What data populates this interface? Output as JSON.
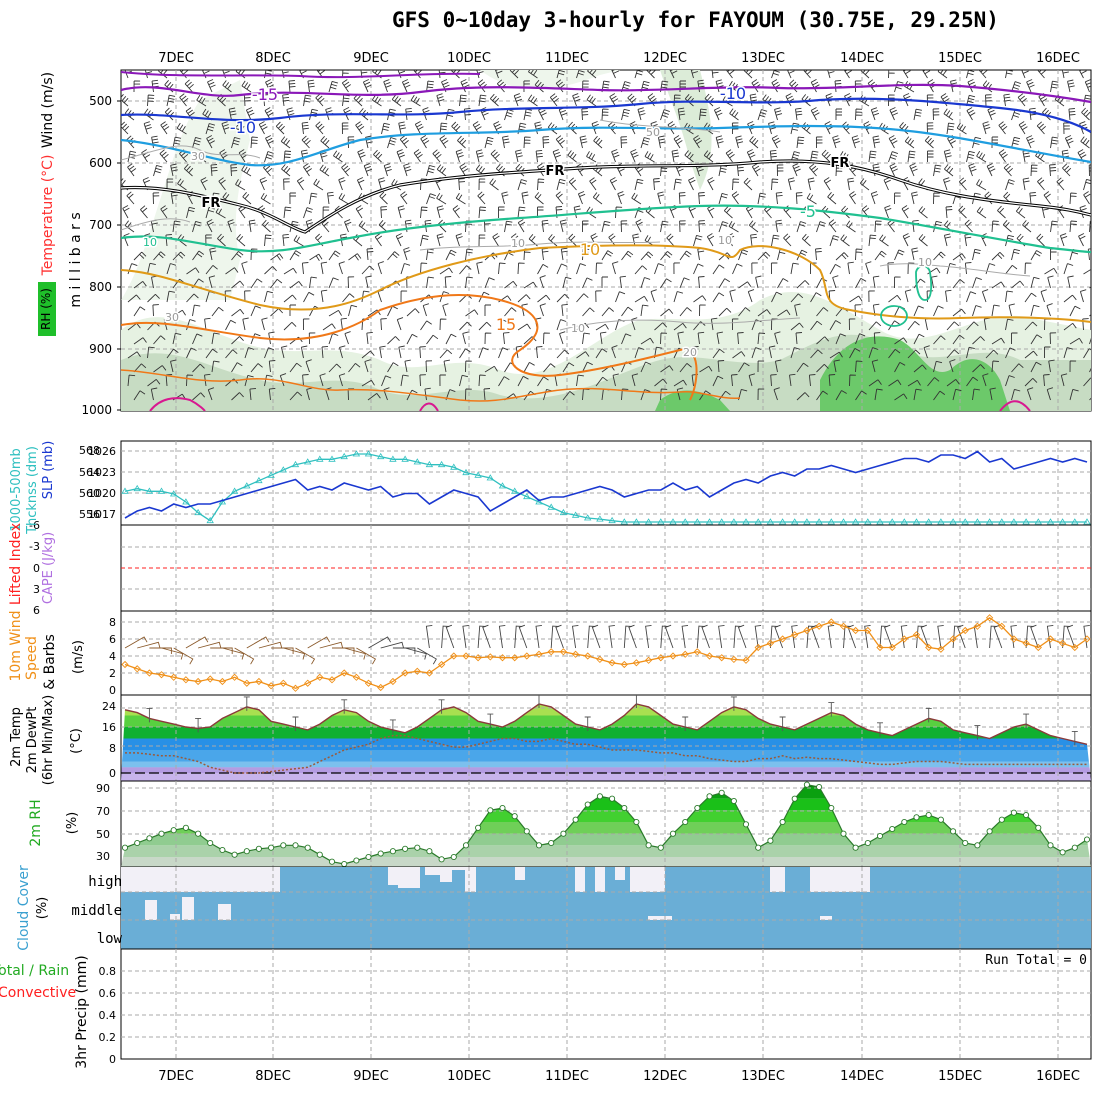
{
  "title": "GFS 0~10day 3-hourly for FAYOUM (30.75E, 29.25N)",
  "dates": [
    "7DEC",
    "8DEC",
    "9DEC",
    "10DEC",
    "11DEC",
    "12DEC",
    "13DEC",
    "14DEC",
    "15DEC",
    "16DEC"
  ],
  "colors": {
    "rh_green": "#1fbf2a",
    "temp": "#ff3030",
    "wind": "#000000",
    "thickness": "#30c0c0",
    "slp": "#1a38d0",
    "lifted": "#ff2020",
    "cape": "#b070e0",
    "wind_orange": "#f09018",
    "cloud_blue": "#6aaed6",
    "rh_label": "#22aa22",
    "precip_total": "#22aa22",
    "precip_conv": "#ff2020"
  },
  "panels": {
    "upper": {
      "label_rh": "RH (%)",
      "label_temp": "Temperature (°C)",
      "label_wind": "Wind (m/s)",
      "label_mb": "m i l l i b a r s",
      "yticks": [
        "500",
        "600",
        "700",
        "800",
        "900",
        "1000"
      ],
      "contour_labels": [
        "-15",
        "-10",
        "-10",
        "-5",
        "FR",
        "FR",
        "FR",
        "10",
        "15",
        "10",
        "10",
        "10",
        "30",
        "10",
        "50",
        "20",
        "10",
        "30"
      ]
    },
    "thickness": {
      "label_a": "1000-500mb",
      "label_b": "Thcknss (dm)",
      "label_c": "SLP (mb)",
      "left_ticks": [
        "568",
        "564",
        "560",
        "556"
      ],
      "right_ticks": [
        "1026",
        "1023",
        "1020",
        "1017"
      ]
    },
    "stability": {
      "label_a": "Lifted Index",
      "label_b": "CAPE (J/kg)",
      "yticks": [
        "-6",
        "-3",
        "0",
        "3",
        "6"
      ]
    },
    "wind10m": {
      "label_a": "10m Wind",
      "label_b": "Speed",
      "label_c": "& Barbs",
      "label_d": "(m/s)",
      "yticks": [
        "8",
        "6",
        "4",
        "2",
        "0"
      ]
    },
    "temp2m": {
      "label_a": "2m Temp",
      "label_b": "2m DewPt",
      "label_c": "(6hr Min/Max)",
      "label_d": "(°C)",
      "yticks": [
        "24",
        "16",
        "8",
        "0"
      ]
    },
    "rh2m": {
      "label_a": "2m RH",
      "label_b": "(%)",
      "yticks": [
        "90",
        "70",
        "50",
        "30"
      ]
    },
    "cloud": {
      "label_a": "Cloud Cover",
      "label_b": "(%)",
      "levels": [
        "high",
        "middle",
        "low"
      ]
    },
    "precip": {
      "label_a": "Total / Rain",
      "label_b": "Convective",
      "label_c": "3hr Precip (mm)",
      "run_total": "Run Total = 0",
      "yticks": [
        "0.8",
        "0.6",
        "0.4",
        "0.2",
        "0"
      ]
    }
  },
  "chart_data": [
    {
      "type": "line",
      "title": "1000-500mb Thickness (dm) and SLP (mb)",
      "series": [
        {
          "name": "1000-500mb Thcknss (dm)",
          "values": [
            561,
            561.5,
            561,
            561,
            560.5,
            559,
            557,
            555.5,
            559,
            561,
            562,
            563,
            564,
            565,
            566,
            566.5,
            567,
            567,
            567.5,
            568,
            568,
            567.5,
            567,
            567,
            566.5,
            566,
            566,
            565.5,
            564.5,
            564,
            563.5,
            562,
            561,
            560,
            559,
            558,
            557,
            556.5,
            556,
            555.8,
            555.5,
            555.2,
            555,
            554.7,
            554.5,
            554.3,
            554.2,
            554.1,
            553.9,
            553.8,
            553.6,
            553.4,
            553.2,
            553.1,
            553,
            552.9,
            552.8,
            552.6,
            552.5,
            552.4,
            552.2,
            552.1,
            552,
            551.8,
            551.7,
            551.6,
            551.5,
            551.4,
            551.3,
            551.2,
            551,
            550.9,
            550.8,
            550.7,
            550.6,
            550.4,
            550.3,
            550.2,
            550.1,
            550
          ]
        },
        {
          "name": "SLP (mb)",
          "values": [
            1017,
            1018,
            1018.5,
            1018,
            1019,
            1018.5,
            1019,
            1019,
            1019.5,
            1020,
            1020.5,
            1021,
            1021.5,
            1022,
            1022.5,
            1021,
            1021.5,
            1021,
            1022,
            1021.5,
            1021,
            1021.5,
            1020,
            1020.5,
            1020.5,
            1019,
            1020,
            1021,
            1020.5,
            1020,
            1018,
            1019,
            1020,
            1021,
            1019.5,
            1020,
            1020,
            1020.5,
            1021,
            1021.5,
            1021,
            1020,
            1020.5,
            1021,
            1021,
            1022,
            1021,
            1021.5,
            1020,
            1021,
            1022,
            1022.5,
            1022,
            1023,
            1023.5,
            1023,
            1024,
            1024,
            1024.5,
            1024,
            1023.5,
            1024,
            1024.5,
            1025,
            1025.5,
            1025.5,
            1025,
            1026,
            1026,
            1025.5,
            1026.5,
            1025,
            1025.5,
            1024,
            1024.5,
            1025,
            1025.5,
            1025,
            1025.5,
            1025
          ]
        }
      ]
    },
    {
      "type": "line",
      "title": "10m Wind Speed (m/s)",
      "series": [
        {
          "name": "10m Wind Speed",
          "values": [
            3,
            2.5,
            2,
            1.8,
            1.5,
            1.2,
            1,
            1.3,
            1,
            1.5,
            0.8,
            1,
            0.5,
            0.8,
            0.2,
            0.8,
            1.5,
            1.2,
            2,
            1.5,
            0.8,
            0.3,
            1,
            2,
            2.2,
            2,
            3,
            4,
            4,
            3.8,
            3.9,
            3.8,
            3.8,
            4,
            4.2,
            4.5,
            4.5,
            4.2,
            4,
            3.6,
            3.2,
            3,
            3.2,
            3.5,
            3.8,
            4,
            4.2,
            4.5,
            4,
            3.8,
            3.6,
            3.5,
            5,
            5.5,
            6,
            6.5,
            7,
            7.5,
            8,
            7.5,
            7,
            7,
            5,
            5,
            6,
            6.5,
            5,
            4.8,
            6,
            7,
            7.5,
            8.5,
            7.5,
            6,
            5.5,
            5,
            6,
            5.5,
            5,
            6
          ]
        }
      ]
    },
    {
      "type": "area",
      "title": "2m Temp / 2m DewPt (°C)",
      "series": [
        {
          "name": "2m Temp",
          "values": [
            22,
            21,
            19,
            18,
            17,
            16,
            15.5,
            16,
            19,
            21,
            23,
            22,
            18,
            17,
            16,
            15,
            17,
            20,
            22,
            21,
            18,
            16,
            15,
            14,
            16,
            19,
            22,
            23,
            21,
            18,
            17,
            16,
            18,
            21,
            24,
            23,
            20,
            17,
            16,
            15,
            17,
            20,
            24,
            23,
            20,
            17,
            16,
            15,
            18,
            21,
            23,
            22,
            19,
            17,
            16,
            15,
            17,
            19,
            21,
            20,
            17,
            15,
            14,
            13,
            15,
            17,
            19,
            18,
            15,
            14,
            13,
            12,
            14,
            16,
            17,
            15,
            13,
            12,
            11,
            10
          ]
        },
        {
          "name": "2m DewPt",
          "values": [
            7,
            7,
            6.5,
            6,
            6,
            5,
            4,
            2,
            1,
            0,
            0,
            0,
            0.5,
            1,
            1.5,
            2,
            4,
            6,
            8,
            9,
            10,
            12,
            13,
            13,
            12,
            11,
            10,
            9,
            9,
            10,
            11,
            12,
            12,
            11,
            11,
            12,
            11,
            10,
            10,
            9,
            8,
            8,
            8,
            7.5,
            7,
            7,
            6,
            6,
            5,
            4.5,
            4,
            4,
            5,
            5,
            6,
            5,
            5.5,
            5,
            5,
            4.5,
            4,
            3.5,
            3,
            3,
            3.5,
            4,
            4,
            4,
            3.5,
            3,
            3,
            3,
            3,
            3,
            3,
            3,
            3,
            3,
            3,
            3
          ]
        }
      ]
    },
    {
      "type": "area",
      "title": "2m RH (%)",
      "series": [
        {
          "name": "2m RH",
          "values": [
            38,
            42,
            46,
            50,
            53,
            55,
            50,
            42,
            36,
            32,
            35,
            37,
            38,
            40,
            40,
            38,
            32,
            26,
            24,
            27,
            30,
            33,
            35,
            37,
            38,
            35,
            28,
            30,
            40,
            55,
            70,
            72,
            65,
            52,
            40,
            42,
            50,
            62,
            75,
            82,
            80,
            72,
            60,
            40,
            38,
            50,
            60,
            72,
            82,
            85,
            78,
            58,
            38,
            44,
            60,
            80,
            92,
            90,
            72,
            50,
            38,
            42,
            48,
            54,
            60,
            64,
            66,
            62,
            52,
            42,
            40,
            52,
            62,
            68,
            66,
            55,
            40,
            34,
            38,
            45
          ]
        }
      ]
    },
    {
      "type": "bar",
      "title": "3hr Precip (mm)",
      "ylim": [
        0,
        0.9
      ],
      "series": [
        {
          "name": "Total / Rain",
          "values": [
            0,
            0,
            0,
            0,
            0,
            0,
            0,
            0,
            0,
            0,
            0,
            0,
            0,
            0,
            0,
            0,
            0,
            0,
            0,
            0,
            0,
            0,
            0,
            0,
            0,
            0,
            0,
            0,
            0,
            0,
            0,
            0,
            0,
            0,
            0,
            0,
            0,
            0,
            0,
            0,
            0,
            0,
            0,
            0,
            0,
            0,
            0,
            0,
            0,
            0,
            0,
            0,
            0,
            0,
            0,
            0,
            0,
            0,
            0,
            0,
            0,
            0,
            0,
            0,
            0,
            0,
            0,
            0,
            0,
            0,
            0,
            0,
            0,
            0,
            0,
            0,
            0,
            0,
            0,
            0
          ]
        }
      ]
    }
  ]
}
